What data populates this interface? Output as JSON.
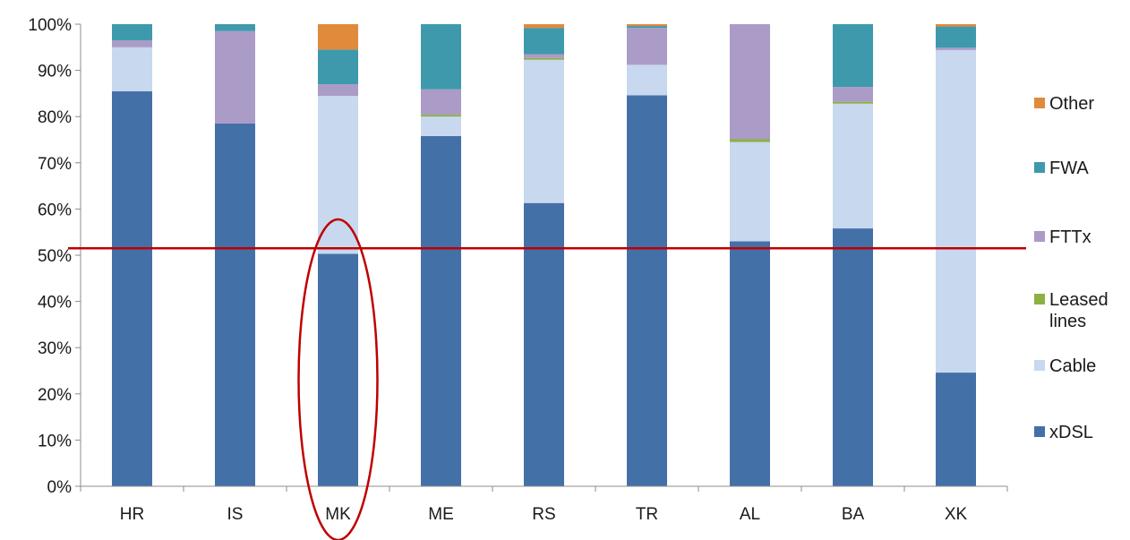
{
  "chart_data": {
    "type": "bar",
    "stacked": true,
    "percent": true,
    "categories": [
      "HR",
      "IS",
      "MK",
      "ME",
      "RS",
      "TR",
      "AL",
      "BA",
      "XK"
    ],
    "series": [
      {
        "name": "xDSL",
        "color": "#4470a8",
        "values": [
          85.5,
          78.5,
          50.3,
          75.8,
          61.3,
          84.6,
          53.0,
          55.8,
          24.6
        ]
      },
      {
        "name": "Cable",
        "color": "#c7d8ef",
        "values": [
          9.5,
          0,
          34.2,
          4.2,
          31.0,
          6.6,
          21.5,
          27.0,
          69.8
        ]
      },
      {
        "name": "Leased lines",
        "color": "#8db043",
        "values": [
          0,
          0,
          0,
          0.4,
          0.4,
          0,
          0.6,
          0.4,
          0
        ]
      },
      {
        "name": "FTTx",
        "color": "#ab9bc7",
        "values": [
          1.5,
          20.0,
          2.5,
          5.5,
          0.8,
          8.0,
          24.9,
          3.2,
          0.5
        ]
      },
      {
        "name": "FWA",
        "color": "#3f99ad",
        "values": [
          3.5,
          1.5,
          7.5,
          14.1,
          5.7,
          0.4,
          0,
          13.6,
          4.6
        ]
      },
      {
        "name": "Other",
        "color": "#e08a3c",
        "values": [
          0,
          0,
          5.5,
          0,
          0.8,
          0.4,
          0,
          0,
          0.5
        ]
      }
    ],
    "legend_order": [
      "Other",
      "FWA",
      "FTTx",
      "Leased lines",
      "Cable",
      "xDSL"
    ],
    "y_ticks": [
      "0%",
      "10%",
      "20%",
      "30%",
      "40%",
      "50%",
      "60%",
      "70%",
      "80%",
      "90%",
      "100%"
    ],
    "ylim": [
      0,
      100
    ],
    "grid": false,
    "legend_position": "right",
    "reference_line": {
      "value": 51.5,
      "color": "#c00000"
    },
    "highlight": {
      "category": "MK",
      "color": "#c00000"
    },
    "title": "",
    "xlabel": "",
    "ylabel": ""
  }
}
